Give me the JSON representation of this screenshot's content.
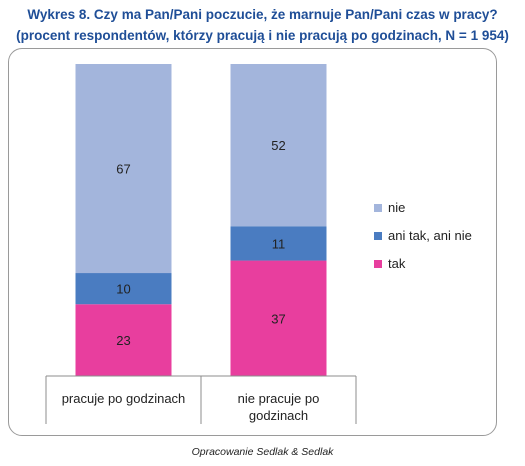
{
  "header": {
    "title": "Wykres 8. Czy ma Pan/Pani poczucie, że marnuje Pan/Pani czas w pracy?",
    "subtitle": "(procent respondentów, którzy pracują i nie pracują po godzinach, N = 1 954)"
  },
  "source": "Opracowanie Sedlak & Sedlak",
  "chart_data": {
    "type": "bar",
    "stacked": true,
    "categories": [
      [
        "pracuje po godzinach"
      ],
      [
        "nie pracuje po",
        "godzinach"
      ]
    ],
    "series": [
      {
        "name": "tak",
        "values": [
          23,
          37
        ],
        "color": "#e83e9e"
      },
      {
        "name": "ani tak, ani nie",
        "values": [
          10,
          11
        ],
        "color": "#4a7cc1"
      },
      {
        "name": "nie",
        "values": [
          67,
          52
        ],
        "color": "#a3b5dc"
      }
    ],
    "ylim": [
      0,
      100
    ],
    "grid": false,
    "legend": "right"
  }
}
